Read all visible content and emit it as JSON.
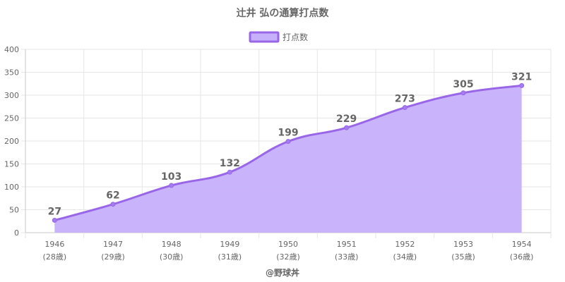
{
  "chart_data": {
    "type": "area",
    "title": "辻井 弘の通算打点数",
    "categories": [
      "1946",
      "1947",
      "1948",
      "1949",
      "1950",
      "1951",
      "1952",
      "1953",
      "1954"
    ],
    "sub_labels": [
      "(28歳)",
      "(29歳)",
      "(30歳)",
      "(31歳)",
      "(32歳)",
      "(33歳)",
      "(34歳)",
      "(35歳)",
      "(36歳)"
    ],
    "series": [
      {
        "name": "打点数",
        "values": [
          27,
          62,
          103,
          132,
          199,
          229,
          273,
          305,
          321
        ]
      }
    ],
    "ylim": [
      0,
      400
    ],
    "yticks": [
      0,
      50,
      100,
      150,
      200,
      250,
      300,
      350,
      400
    ],
    "grid": true,
    "legend_position": "top",
    "colors": {
      "line": "#9966e8",
      "fill": "#c6b0fb",
      "point": "#a27cf0",
      "grid": "#e6e6e6",
      "axis": "#c8c8c8"
    }
  },
  "footer": "@野球丼"
}
